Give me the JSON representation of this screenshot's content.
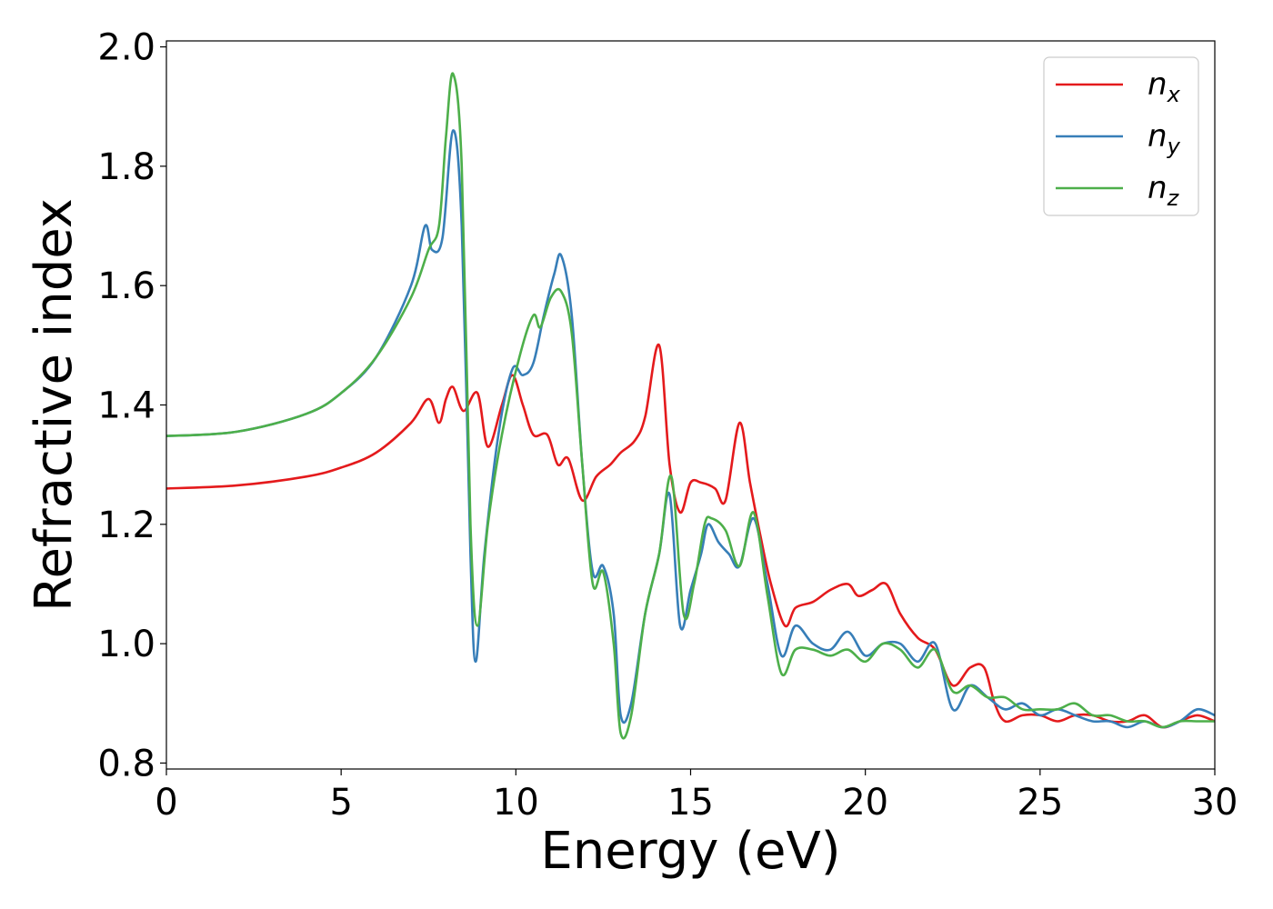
{
  "chart_data": {
    "type": "line",
    "xlabel": "Energy (eV)",
    "ylabel": "Refractive index",
    "xlim": [
      0,
      30
    ],
    "ylim": [
      0.79,
      2.01
    ],
    "xticks": [
      "0",
      "5",
      "10",
      "15",
      "20",
      "25",
      "30"
    ],
    "yticks": [
      "0.8",
      "1.0",
      "1.2",
      "1.4",
      "1.6",
      "1.8",
      "2.0"
    ],
    "grid": false,
    "legend_position": "top-right",
    "series": [
      {
        "name": "n_x",
        "label_base": "n",
        "label_sub": "x",
        "color": "#e41a1c",
        "points": [
          [
            0,
            1.26
          ],
          [
            2,
            1.265
          ],
          [
            4,
            1.28
          ],
          [
            5,
            1.295
          ],
          [
            6,
            1.32
          ],
          [
            7,
            1.37
          ],
          [
            7.5,
            1.41
          ],
          [
            7.8,
            1.37
          ],
          [
            8.0,
            1.41
          ],
          [
            8.2,
            1.43
          ],
          [
            8.5,
            1.39
          ],
          [
            8.9,
            1.42
          ],
          [
            9.2,
            1.33
          ],
          [
            9.6,
            1.4
          ],
          [
            9.9,
            1.45
          ],
          [
            10.2,
            1.4
          ],
          [
            10.5,
            1.35
          ],
          [
            10.9,
            1.35
          ],
          [
            11.2,
            1.3
          ],
          [
            11.5,
            1.31
          ],
          [
            11.9,
            1.24
          ],
          [
            12.3,
            1.28
          ],
          [
            12.7,
            1.3
          ],
          [
            13.0,
            1.32
          ],
          [
            13.4,
            1.34
          ],
          [
            13.7,
            1.38
          ],
          [
            14.1,
            1.5
          ],
          [
            14.4,
            1.3
          ],
          [
            14.7,
            1.22
          ],
          [
            15.0,
            1.27
          ],
          [
            15.3,
            1.27
          ],
          [
            15.7,
            1.26
          ],
          [
            16.0,
            1.24
          ],
          [
            16.4,
            1.37
          ],
          [
            16.7,
            1.27
          ],
          [
            17.0,
            1.18
          ],
          [
            17.3,
            1.1
          ],
          [
            17.7,
            1.03
          ],
          [
            18.0,
            1.06
          ],
          [
            18.5,
            1.07
          ],
          [
            19.0,
            1.09
          ],
          [
            19.5,
            1.1
          ],
          [
            19.8,
            1.08
          ],
          [
            20.2,
            1.09
          ],
          [
            20.6,
            1.1
          ],
          [
            21.0,
            1.05
          ],
          [
            21.5,
            1.01
          ],
          [
            22.0,
            0.99
          ],
          [
            22.5,
            0.93
          ],
          [
            23.0,
            0.96
          ],
          [
            23.4,
            0.96
          ],
          [
            23.7,
            0.9
          ],
          [
            24.0,
            0.87
          ],
          [
            24.5,
            0.88
          ],
          [
            25.0,
            0.88
          ],
          [
            25.5,
            0.87
          ],
          [
            26.0,
            0.88
          ],
          [
            26.5,
            0.88
          ],
          [
            27.0,
            0.87
          ],
          [
            27.5,
            0.87
          ],
          [
            28.0,
            0.88
          ],
          [
            28.5,
            0.86
          ],
          [
            29.0,
            0.87
          ],
          [
            29.5,
            0.88
          ],
          [
            30.0,
            0.87
          ]
        ]
      },
      {
        "name": "n_y",
        "label_base": "n",
        "label_sub": "y",
        "color": "#377eb8",
        "points": [
          [
            0,
            1.348
          ],
          [
            2,
            1.355
          ],
          [
            4,
            1.385
          ],
          [
            5,
            1.42
          ],
          [
            6,
            1.48
          ],
          [
            7,
            1.6
          ],
          [
            7.4,
            1.7
          ],
          [
            7.6,
            1.66
          ],
          [
            7.9,
            1.68
          ],
          [
            8.2,
            1.86
          ],
          [
            8.45,
            1.7
          ],
          [
            8.7,
            1.15
          ],
          [
            8.85,
            0.97
          ],
          [
            9.1,
            1.15
          ],
          [
            9.5,
            1.35
          ],
          [
            9.9,
            1.46
          ],
          [
            10.2,
            1.45
          ],
          [
            10.5,
            1.47
          ],
          [
            10.8,
            1.55
          ],
          [
            11.1,
            1.62
          ],
          [
            11.3,
            1.65
          ],
          [
            11.6,
            1.55
          ],
          [
            11.9,
            1.3
          ],
          [
            12.2,
            1.12
          ],
          [
            12.5,
            1.13
          ],
          [
            12.8,
            1.05
          ],
          [
            13.0,
            0.88
          ],
          [
            13.3,
            0.9
          ],
          [
            13.7,
            1.05
          ],
          [
            14.1,
            1.15
          ],
          [
            14.4,
            1.25
          ],
          [
            14.7,
            1.03
          ],
          [
            15.0,
            1.09
          ],
          [
            15.3,
            1.15
          ],
          [
            15.5,
            1.2
          ],
          [
            15.8,
            1.17
          ],
          [
            16.1,
            1.15
          ],
          [
            16.4,
            1.13
          ],
          [
            16.8,
            1.21
          ],
          [
            17.2,
            1.1
          ],
          [
            17.6,
            0.98
          ],
          [
            18.0,
            1.03
          ],
          [
            18.5,
            1.0
          ],
          [
            19.0,
            0.99
          ],
          [
            19.5,
            1.02
          ],
          [
            20.0,
            0.98
          ],
          [
            20.5,
            1.0
          ],
          [
            21.0,
            1.0
          ],
          [
            21.5,
            0.97
          ],
          [
            22.0,
            1.0
          ],
          [
            22.5,
            0.89
          ],
          [
            23.0,
            0.93
          ],
          [
            23.5,
            0.91
          ],
          [
            24.0,
            0.89
          ],
          [
            24.5,
            0.9
          ],
          [
            25.0,
            0.88
          ],
          [
            25.5,
            0.89
          ],
          [
            26.0,
            0.88
          ],
          [
            26.5,
            0.87
          ],
          [
            27.0,
            0.87
          ],
          [
            27.5,
            0.86
          ],
          [
            28.0,
            0.87
          ],
          [
            28.5,
            0.86
          ],
          [
            29.0,
            0.87
          ],
          [
            29.5,
            0.89
          ],
          [
            30.0,
            0.88
          ]
        ]
      },
      {
        "name": "n_z",
        "label_base": "n",
        "label_sub": "z",
        "color": "#4daf4a",
        "points": [
          [
            0,
            1.348
          ],
          [
            2,
            1.355
          ],
          [
            4,
            1.385
          ],
          [
            5,
            1.42
          ],
          [
            6,
            1.48
          ],
          [
            7,
            1.58
          ],
          [
            7.5,
            1.66
          ],
          [
            7.8,
            1.7
          ],
          [
            8.0,
            1.85
          ],
          [
            8.2,
            1.955
          ],
          [
            8.45,
            1.8
          ],
          [
            8.7,
            1.2
          ],
          [
            8.9,
            1.03
          ],
          [
            9.2,
            1.2
          ],
          [
            9.6,
            1.35
          ],
          [
            10.1,
            1.48
          ],
          [
            10.5,
            1.55
          ],
          [
            10.7,
            1.53
          ],
          [
            11.0,
            1.58
          ],
          [
            11.3,
            1.59
          ],
          [
            11.6,
            1.52
          ],
          [
            11.9,
            1.3
          ],
          [
            12.2,
            1.1
          ],
          [
            12.5,
            1.12
          ],
          [
            12.8,
            1.0
          ],
          [
            13.0,
            0.85
          ],
          [
            13.3,
            0.88
          ],
          [
            13.7,
            1.05
          ],
          [
            14.1,
            1.15
          ],
          [
            14.45,
            1.28
          ],
          [
            14.8,
            1.05
          ],
          [
            15.1,
            1.1
          ],
          [
            15.4,
            1.2
          ],
          [
            15.6,
            1.21
          ],
          [
            16.0,
            1.19
          ],
          [
            16.4,
            1.13
          ],
          [
            16.8,
            1.22
          ],
          [
            17.2,
            1.08
          ],
          [
            17.6,
            0.95
          ],
          [
            18.0,
            0.99
          ],
          [
            18.5,
            0.99
          ],
          [
            19.0,
            0.98
          ],
          [
            19.5,
            0.99
          ],
          [
            20.0,
            0.97
          ],
          [
            20.5,
            1.0
          ],
          [
            21.0,
            0.99
          ],
          [
            21.5,
            0.96
          ],
          [
            22.0,
            0.99
          ],
          [
            22.5,
            0.92
          ],
          [
            23.0,
            0.93
          ],
          [
            23.5,
            0.91
          ],
          [
            24.0,
            0.91
          ],
          [
            24.5,
            0.89
          ],
          [
            25.0,
            0.89
          ],
          [
            25.5,
            0.89
          ],
          [
            26.0,
            0.9
          ],
          [
            26.5,
            0.88
          ],
          [
            27.0,
            0.88
          ],
          [
            27.5,
            0.87
          ],
          [
            28.0,
            0.87
          ],
          [
            28.5,
            0.86
          ],
          [
            29.0,
            0.87
          ],
          [
            29.5,
            0.87
          ],
          [
            30.0,
            0.87
          ]
        ]
      }
    ]
  }
}
